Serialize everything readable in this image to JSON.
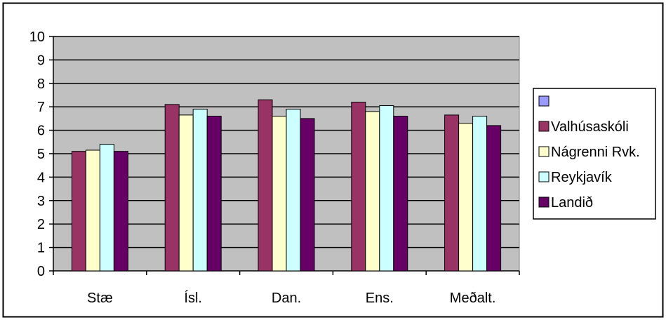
{
  "chart_data": {
    "type": "bar",
    "categories": [
      "Stæ",
      "Ísl.",
      "Dan.",
      "Ens.",
      "Meðalt."
    ],
    "ylim": [
      0,
      10
    ],
    "yticks": [
      0,
      1,
      2,
      3,
      4,
      5,
      6,
      7,
      8,
      9,
      10
    ],
    "grid": true,
    "legend_position": "right",
    "legend_entries": [
      "",
      "Valhúsaskóli",
      "Nágrenni Rvk.",
      "Reykjavík",
      "Landið"
    ],
    "series": [
      {
        "name": "",
        "values": [
          0,
          0,
          0,
          0,
          0
        ],
        "color": "#9999ff"
      },
      {
        "name": "Valhúsaskóli",
        "values": [
          5.1,
          7.1,
          7.3,
          7.2,
          6.65
        ],
        "color": "#993366"
      },
      {
        "name": "Nágrenni Rvk.",
        "values": [
          5.15,
          6.65,
          6.6,
          6.8,
          6.3
        ],
        "color": "#ffffcc"
      },
      {
        "name": "Reykjavík",
        "values": [
          5.4,
          6.9,
          6.9,
          7.05,
          6.6
        ],
        "color": "#ccffff"
      },
      {
        "name": "Landið",
        "values": [
          5.1,
          6.6,
          6.5,
          6.6,
          6.2
        ],
        "color": "#660066"
      }
    ],
    "plot_background": "#c0c0c0",
    "gridline_color": "#000000"
  }
}
